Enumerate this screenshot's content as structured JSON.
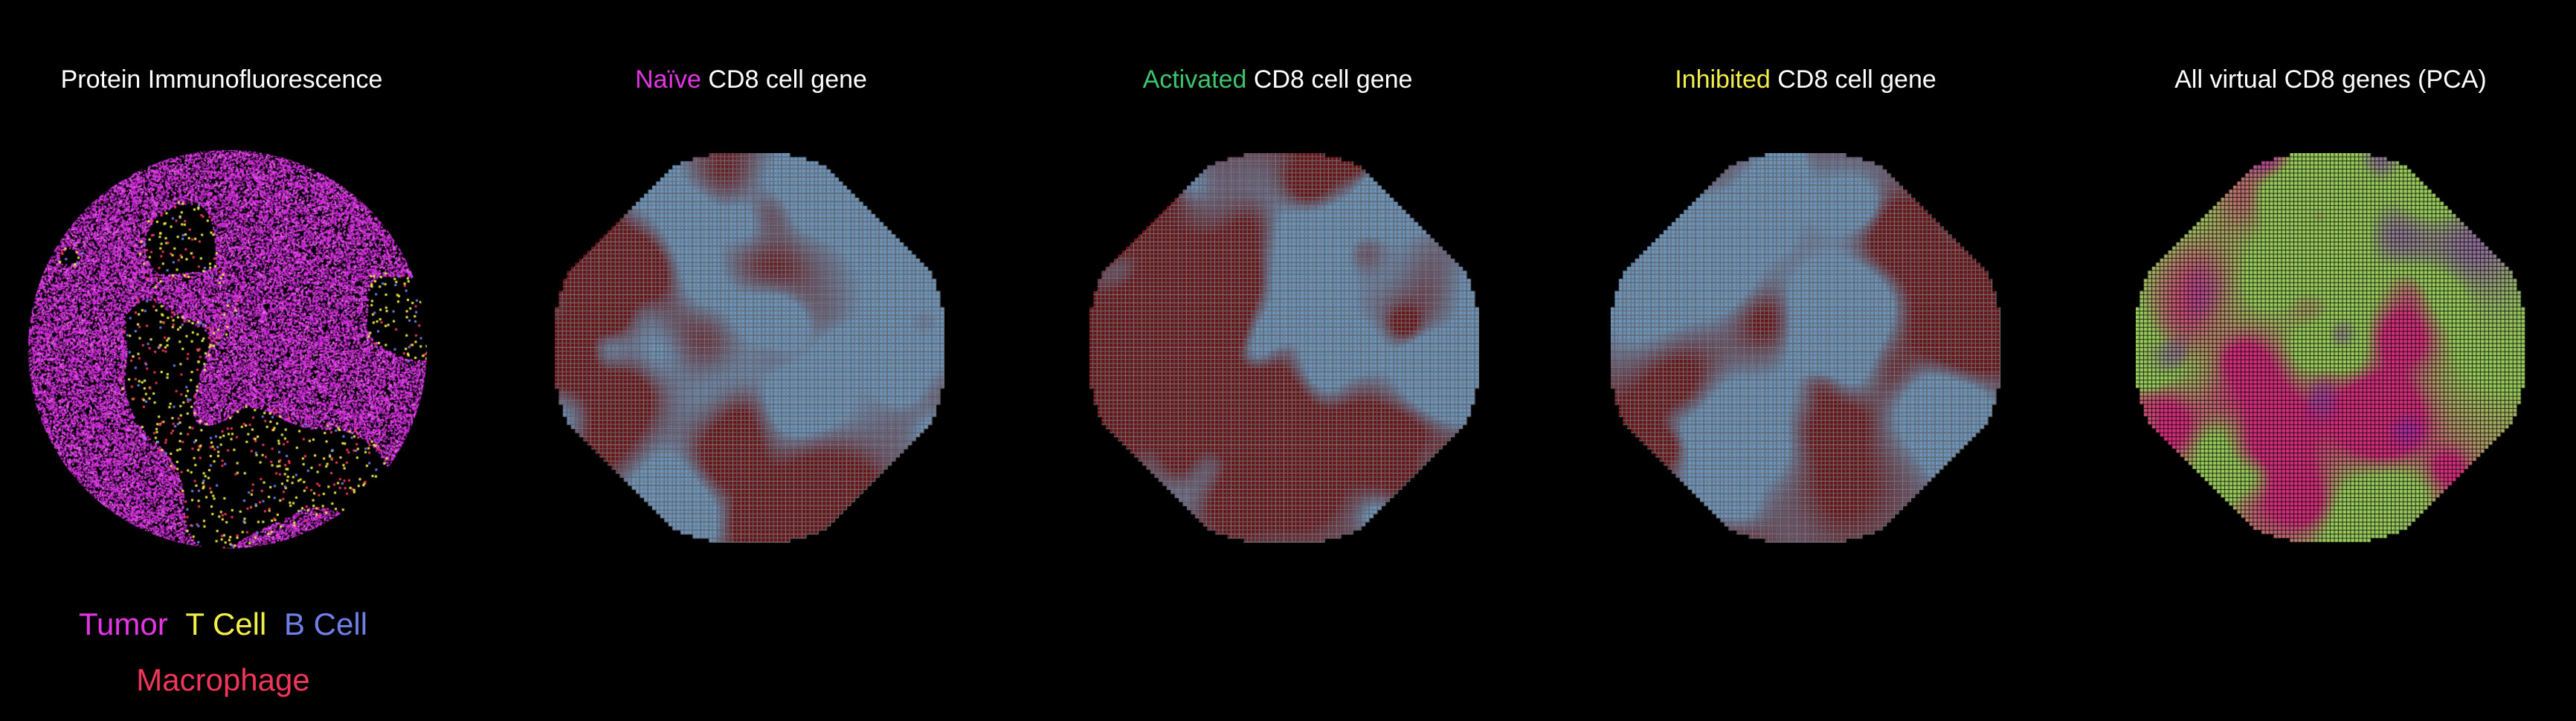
{
  "panels": [
    {
      "id": "protein",
      "title_parts": [
        {
          "text": "Protein Immunofluorescence",
          "color": "#ffffff"
        }
      ]
    },
    {
      "id": "naive",
      "title_parts": [
        {
          "text": "Naïve",
          "color": "#e535e5"
        },
        {
          "text": " CD8 cell gene",
          "color": "#ffffff"
        }
      ]
    },
    {
      "id": "activated",
      "title_parts": [
        {
          "text": "Activated",
          "color": "#3ec46d"
        },
        {
          "text": " CD8 cell gene",
          "color": "#ffffff"
        }
      ]
    },
    {
      "id": "inhibited",
      "title_parts": [
        {
          "text": "Inhibited",
          "color": "#f2ee4a"
        },
        {
          "text": " CD8 cell gene",
          "color": "#ffffff"
        }
      ]
    },
    {
      "id": "pca",
      "title_parts": [
        {
          "text": "All virtual CD8 genes (PCA)",
          "color": "#ffffff"
        }
      ]
    }
  ],
  "legend": {
    "items": [
      {
        "label": "Tumor",
        "color": "#e535e5"
      },
      {
        "label": "T Cell",
        "color": "#f2ee4a"
      },
      {
        "label": "B Cell",
        "color": "#6f7fe8"
      },
      {
        "label": "Macrophage",
        "color": "#f0365a"
      }
    ]
  },
  "colors": {
    "background": "#000000",
    "tumor": "#d82fe0",
    "tcell": "#f2ee4a",
    "bcell": "#6f7fe8",
    "macrophage": "#f0365a",
    "heat_high": "#6e0f12",
    "heat_low": "#6a98c2",
    "pca_green": "#9ccf5e",
    "pca_purple": "#8a2fc8",
    "pca_magenta": "#d8307e"
  }
}
